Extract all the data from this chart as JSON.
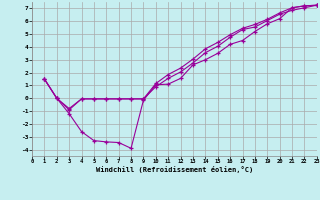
{
  "xlabel": "Windchill (Refroidissement éolien,°C)",
  "bg_color": "#c6eef0",
  "line_color": "#990099",
  "grid_color": "#aaaaaa",
  "xlim": [
    0,
    23
  ],
  "ylim": [
    -4.5,
    7.5
  ],
  "xticks": [
    0,
    1,
    2,
    3,
    4,
    5,
    6,
    7,
    8,
    9,
    10,
    11,
    12,
    13,
    14,
    15,
    16,
    17,
    18,
    19,
    20,
    21,
    22,
    23
  ],
  "yticks": [
    -4,
    -3,
    -2,
    -1,
    0,
    1,
    2,
    3,
    4,
    5,
    6,
    7
  ],
  "series1_x": [
    1,
    2,
    3,
    4,
    5,
    6,
    7,
    8,
    9,
    10,
    11,
    12,
    13,
    14,
    15,
    16,
    17,
    18,
    19,
    20,
    21,
    22,
    23
  ],
  "series1_y": [
    1.5,
    0.0,
    -1.2,
    -2.6,
    -3.3,
    -3.4,
    -3.45,
    -3.9,
    -0.15,
    1.05,
    1.1,
    1.55,
    2.6,
    3.0,
    3.5,
    4.2,
    4.5,
    5.2,
    5.8,
    6.2,
    7.05,
    7.2,
    7.25
  ],
  "series2_x": [
    1,
    2,
    3,
    4,
    5,
    6,
    7,
    8,
    9,
    10,
    11,
    12,
    13,
    14,
    15,
    16,
    17,
    18,
    19,
    20,
    21,
    22,
    23
  ],
  "series2_y": [
    1.5,
    0.0,
    -0.8,
    -0.05,
    -0.05,
    -0.05,
    -0.05,
    -0.05,
    -0.05,
    0.9,
    1.55,
    2.05,
    2.75,
    3.55,
    4.05,
    4.75,
    5.35,
    5.55,
    6.05,
    6.55,
    6.85,
    7.05,
    7.25
  ],
  "series3_x": [
    1,
    2,
    3,
    4,
    5,
    6,
    7,
    8,
    9,
    10,
    11,
    12,
    13,
    14,
    15,
    16,
    17,
    18,
    19,
    20,
    21,
    22,
    23
  ],
  "series3_y": [
    1.5,
    0.0,
    -0.9,
    -0.05,
    -0.05,
    -0.05,
    -0.05,
    -0.05,
    -0.05,
    1.15,
    1.85,
    2.35,
    3.05,
    3.85,
    4.35,
    4.95,
    5.45,
    5.75,
    6.15,
    6.65,
    7.05,
    7.2,
    7.25
  ]
}
